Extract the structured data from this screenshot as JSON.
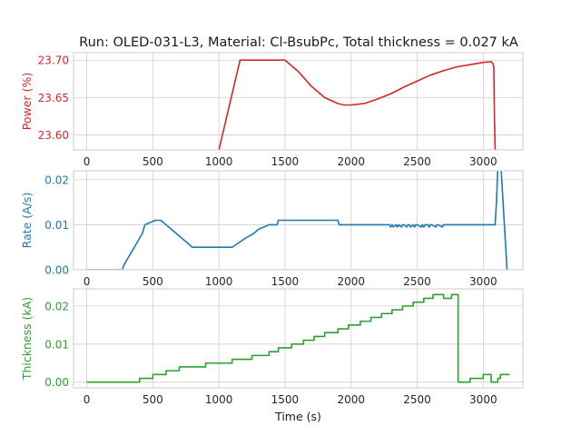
{
  "figure_title": "Run: OLED-031-L3, Material: Cl-BsubPc, Total thickness = 0.027 kA",
  "chart_data": [
    {
      "type": "line",
      "ylabel": "Power (%)",
      "color": "#d62728",
      "xlim": [
        -100,
        3300
      ],
      "ylim": [
        23.58,
        23.71
      ],
      "xticks": [
        0,
        500,
        1000,
        1500,
        2000,
        2500,
        3000
      ],
      "yticks": [
        23.6,
        23.65,
        23.7
      ],
      "ytick_labels": [
        "23.60",
        "23.65",
        "23.70"
      ],
      "grid": true,
      "series": [
        {
          "x": [
            1000,
            1160,
            1500,
            1600,
            1700,
            1800,
            1900,
            1950,
            2000,
            2100,
            2200,
            2300,
            2400,
            2500,
            2600,
            2700,
            2800,
            2900,
            3000,
            3060,
            3075,
            3080,
            3085,
            3090
          ],
          "y": [
            23.58,
            23.7,
            23.7,
            23.685,
            23.665,
            23.65,
            23.642,
            23.64,
            23.64,
            23.642,
            23.648,
            23.655,
            23.664,
            23.672,
            23.68,
            23.686,
            23.691,
            23.694,
            23.697,
            23.698,
            23.695,
            23.69,
            23.62,
            23.58
          ]
        }
      ]
    },
    {
      "type": "line",
      "ylabel": "Rate (A/s)",
      "color": "#1f77b4",
      "xlim": [
        -100,
        3300
      ],
      "ylim": [
        0,
        0.022
      ],
      "xticks": [
        0,
        500,
        1000,
        1500,
        2000,
        2500,
        3000
      ],
      "yticks": [
        0,
        0.01,
        0.02
      ],
      "ytick_labels": [
        "0.00",
        "0.01",
        "0.02"
      ],
      "grid": true,
      "series": [
        {
          "x": [
            0,
            60,
            70,
            160,
            170,
            180,
            250,
            270,
            280,
            300,
            320,
            340,
            360,
            380,
            400,
            420,
            440,
            520,
            560,
            600,
            640,
            680,
            720,
            760,
            800,
            850,
            1000,
            1100,
            1150,
            1200,
            1260,
            1300,
            1380,
            1440,
            1450,
            1550,
            1900,
            1910,
            2290,
            2300,
            2310,
            2320,
            2340,
            2350,
            2360,
            2380,
            2390,
            2400,
            2420,
            2430,
            2440,
            2450,
            2470,
            2480,
            2490,
            2500,
            2530,
            2540,
            2550,
            2560,
            2580,
            2590,
            2600,
            2610,
            2640,
            2650,
            2660,
            2690,
            2700,
            2710,
            3090,
            3100,
            3120,
            3140,
            3160,
            3180
          ],
          "y": [
            0,
            0,
            0,
            0,
            0,
            0,
            0,
            0,
            0.001,
            0.002,
            0.003,
            0.004,
            0.005,
            0.006,
            0.007,
            0.008,
            0.01,
            0.011,
            0.011,
            0.01,
            0.009,
            0.008,
            0.007,
            0.006,
            0.005,
            0.005,
            0.005,
            0.005,
            0.006,
            0.007,
            0.008,
            0.009,
            0.01,
            0.01,
            0.011,
            0.011,
            0.011,
            0.01,
            0.01,
            0.0095,
            0.01,
            0.0095,
            0.01,
            0.0095,
            0.01,
            0.0095,
            0.01,
            0.01,
            0.0095,
            0.01,
            0.01,
            0.0095,
            0.01,
            0.0095,
            0.01,
            0.01,
            0.0095,
            0.01,
            0.0095,
            0.01,
            0.01,
            0.0095,
            0.01,
            0.01,
            0.0095,
            0.01,
            0.01,
            0.0095,
            0.01,
            0.01,
            0.01,
            0.015,
            0.03,
            0.02,
            0.01,
            0
          ]
        }
      ]
    },
    {
      "type": "line",
      "ylabel": "Thickness (kA)",
      "xlabel": "Time (s)",
      "color": "#2ca02c",
      "xlim": [
        -100,
        3300
      ],
      "ylim": [
        -0.0015,
        0.0245
      ],
      "xticks": [
        0,
        500,
        1000,
        1500,
        2000,
        2500,
        3000
      ],
      "yticks": [
        0,
        0.01,
        0.02
      ],
      "ytick_labels": [
        "0.00",
        "0.01",
        "0.02"
      ],
      "grid": true,
      "series": [
        {
          "x": [
            0,
            400,
            400,
            500,
            500,
            600,
            600,
            700,
            700,
            900,
            900,
            1100,
            1100,
            1250,
            1250,
            1380,
            1380,
            1450,
            1450,
            1550,
            1550,
            1640,
            1640,
            1720,
            1720,
            1800,
            1800,
            1900,
            1900,
            1980,
            1980,
            2070,
            2070,
            2150,
            2150,
            2230,
            2230,
            2310,
            2310,
            2390,
            2390,
            2470,
            2470,
            2550,
            2550,
            2620,
            2620,
            2700,
            2700,
            2760,
            2760,
            2810,
            2810,
            2840,
            2840,
            2850,
            2850,
            2900,
            2900,
            2980,
            2980,
            3000,
            3000,
            3060,
            3060,
            3080,
            3080,
            3100,
            3100,
            3110,
            3110,
            3130,
            3130,
            3200
          ],
          "y": [
            0,
            0,
            0.001,
            0.001,
            0.002,
            0.002,
            0.003,
            0.003,
            0.004,
            0.004,
            0.005,
            0.005,
            0.006,
            0.006,
            0.007,
            0.007,
            0.008,
            0.008,
            0.009,
            0.009,
            0.01,
            0.01,
            0.011,
            0.011,
            0.012,
            0.012,
            0.013,
            0.013,
            0.014,
            0.014,
            0.015,
            0.015,
            0.016,
            0.016,
            0.017,
            0.017,
            0.018,
            0.018,
            0.019,
            0.019,
            0.02,
            0.02,
            0.021,
            0.021,
            0.022,
            0.022,
            0.023,
            0.023,
            0.022,
            0.022,
            0.023,
            0.023,
            0,
            0,
            0,
            0,
            0,
            0,
            0.001,
            0.001,
            0.001,
            0.001,
            0.002,
            0.002,
            0,
            0,
            0,
            0,
            0,
            0,
            0.001,
            0.001,
            0.002,
            0.002
          ]
        }
      ]
    }
  ]
}
